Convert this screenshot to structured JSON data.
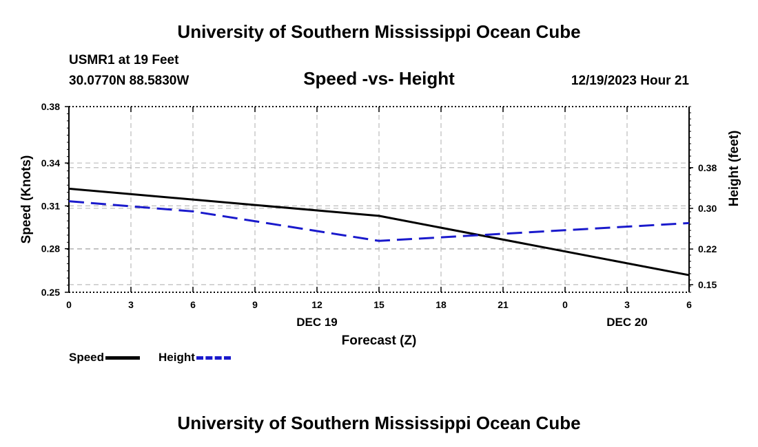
{
  "header": {
    "title": "University of Southern Mississippi Ocean Cube",
    "station": "USMR1 at 19 Feet",
    "location": "30.0770N  88.5830W",
    "date": "12/19/2023 Hour 21"
  },
  "footer": {
    "title": "University of Southern Mississippi Ocean Cube"
  },
  "colors": {
    "speed": "#000000",
    "height": "#1a1acc",
    "grid": "#bbbbbb"
  },
  "chart_data": {
    "type": "line",
    "title": "Speed -vs- Height",
    "xlabel": "Forecast (Z)",
    "ylabel": "Speed (Knots)",
    "y2label": "Height (feet)",
    "x": [
      0,
      3,
      6,
      9,
      12,
      15,
      18,
      21,
      24,
      27,
      30
    ],
    "x_tick_labels": [
      "0",
      "3",
      "6",
      "9",
      "12",
      "15",
      "18",
      "21",
      "0",
      "3",
      "6"
    ],
    "date_labels": [
      {
        "x": 12,
        "label": "DEC 19"
      },
      {
        "x": 27,
        "label": "DEC 20"
      }
    ],
    "xlim": [
      0,
      30
    ],
    "ylim": [
      0.25,
      0.38
    ],
    "y_ticks": [
      0.25,
      0.28,
      0.31,
      0.34,
      0.38
    ],
    "y_tick_values": [
      0.25,
      0.28,
      0.31,
      0.34,
      0.38
    ],
    "y_tick_positions": [
      0.25,
      0.28,
      0.31,
      0.34,
      0.38
    ],
    "y_tick_labels": [
      "0.25",
      "0.28",
      "0.31",
      "0.34",
      "0.38"
    ],
    "y_tick_data": [
      0.25,
      0.2805,
      0.3105,
      0.3405,
      0.38
    ],
    "y2lim": [
      0.135,
      0.5
    ],
    "y2_ticks": [
      0.15,
      0.22,
      0.3,
      0.38
    ],
    "y2_tick_labels": [
      "0.15",
      "0.22",
      "0.30",
      "0.38"
    ],
    "series": [
      {
        "name": "Speed",
        "axis": "left",
        "style": "solid",
        "x": [
          0,
          15,
          30
        ],
        "values": [
          0.3225,
          0.3035,
          0.262
        ]
      },
      {
        "name": "Height",
        "axis": "right",
        "style": "dashed",
        "x": [
          0,
          6,
          15,
          18,
          30
        ],
        "values": [
          0.314,
          0.294,
          0.236,
          0.243,
          0.271
        ]
      }
    ],
    "legend": [
      "Speed",
      "Height"
    ],
    "legend_position": "bottom-left",
    "grid": true
  }
}
